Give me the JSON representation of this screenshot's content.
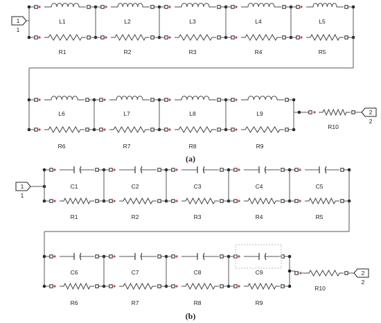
{
  "panel_a": {
    "caption_label": "(a)",
    "port_in": {
      "badge": "1",
      "label": "1"
    },
    "port_out": {
      "badge": "2",
      "label": "2"
    },
    "row1": {
      "inductors": [
        "L1",
        "L2",
        "L3",
        "L4",
        "L5"
      ],
      "resistors": [
        "R1",
        "R2",
        "R3",
        "R4",
        "R5"
      ]
    },
    "row2": {
      "inductors": [
        "L6",
        "L7",
        "L8",
        "L9"
      ],
      "resistors": [
        "R6",
        "R7",
        "R8",
        "R9"
      ]
    },
    "series_resistor": "R10"
  },
  "panel_b": {
    "caption_label": "(b)",
    "port_in": {
      "badge": "1",
      "label": "1"
    },
    "port_out": {
      "badge": "2",
      "label": "2"
    },
    "row1": {
      "capacitors": [
        "C1",
        "C2",
        "C3",
        "C4",
        "C5"
      ],
      "resistors": [
        "R1",
        "R2",
        "R3",
        "R4",
        "R5"
      ]
    },
    "row2": {
      "capacitors": [
        "C6",
        "C7",
        "C8",
        "C9"
      ],
      "resistors": [
        "R6",
        "R7",
        "R8",
        "R9"
      ]
    },
    "series_resistor": "R10"
  },
  "colors": {
    "wire": "#555555",
    "junction": "#222222",
    "polarity_mark": "#d01010",
    "selection_box": "#bbbbbb"
  }
}
